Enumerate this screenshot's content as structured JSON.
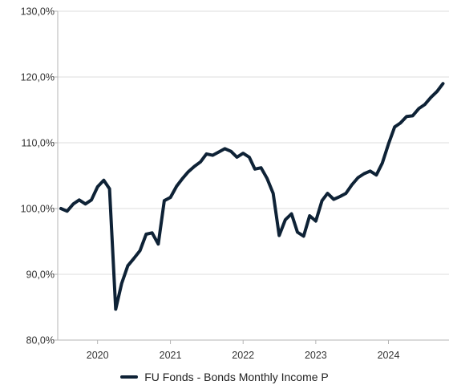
{
  "chart_data": {
    "type": "line",
    "title": "",
    "xlabel": "",
    "ylabel": "",
    "ylim": [
      80,
      130
    ],
    "xlim": [
      "2019-06-15",
      "2024-10-31"
    ],
    "yticks": [
      "80,0%",
      "90,0%",
      "100,0%",
      "110,0%",
      "120,0%",
      "130,0%"
    ],
    "ytick_values": [
      80,
      90,
      100,
      110,
      120,
      130
    ],
    "xticks": [
      "2020",
      "2021",
      "2022",
      "2023",
      "2024"
    ],
    "xtick_dates": [
      "2020-01-01",
      "2021-01-01",
      "2022-01-01",
      "2023-01-01",
      "2024-01-01"
    ],
    "grid": "horizontal",
    "legend_position": "bottom-center",
    "series": [
      {
        "name": "FU Fonds - Bonds Monthly Income P",
        "color": "#0e2236",
        "x": [
          "2019-07-01",
          "2019-08-01",
          "2019-09-01",
          "2019-10-01",
          "2019-11-01",
          "2019-12-01",
          "2020-01-01",
          "2020-02-01",
          "2020-03-01",
          "2020-04-01",
          "2020-05-01",
          "2020-06-01",
          "2020-07-01",
          "2020-08-01",
          "2020-09-01",
          "2020-10-01",
          "2020-11-01",
          "2020-12-01",
          "2021-01-01",
          "2021-02-01",
          "2021-03-01",
          "2021-04-01",
          "2021-05-01",
          "2021-06-01",
          "2021-07-01",
          "2021-08-01",
          "2021-09-01",
          "2021-10-01",
          "2021-11-01",
          "2021-12-01",
          "2022-01-01",
          "2022-02-01",
          "2022-03-01",
          "2022-04-01",
          "2022-05-01",
          "2022-06-01",
          "2022-07-01",
          "2022-08-01",
          "2022-09-01",
          "2022-10-01",
          "2022-11-01",
          "2022-12-01",
          "2023-01-01",
          "2023-02-01",
          "2023-03-01",
          "2023-04-01",
          "2023-05-01",
          "2023-06-01",
          "2023-07-01",
          "2023-08-01",
          "2023-09-01",
          "2023-10-01",
          "2023-11-01",
          "2023-12-01",
          "2024-01-01",
          "2024-02-01",
          "2024-03-01",
          "2024-04-01",
          "2024-05-01",
          "2024-06-01",
          "2024-07-01",
          "2024-08-01",
          "2024-09-01",
          "2024-10-01"
        ],
        "values": [
          100.0,
          99.6,
          100.7,
          101.3,
          100.7,
          101.3,
          103.3,
          104.3,
          103.0,
          84.7,
          88.6,
          91.3,
          92.4,
          93.6,
          96.1,
          96.3,
          94.6,
          101.2,
          101.7,
          103.4,
          104.5,
          105.6,
          106.4,
          107.1,
          108.3,
          108.1,
          108.6,
          109.1,
          108.7,
          107.8,
          108.4,
          107.8,
          106.0,
          106.2,
          104.6,
          102.3,
          95.9,
          98.3,
          99.2,
          96.4,
          95.8,
          98.9,
          98.1,
          101.2,
          102.3,
          101.4,
          101.8,
          102.3,
          103.6,
          104.7,
          105.3,
          105.7,
          105.1,
          106.9,
          109.8,
          112.4,
          113.0,
          114.0,
          114.1,
          115.2,
          115.8,
          116.9,
          117.8,
          119.0
        ]
      }
    ]
  }
}
